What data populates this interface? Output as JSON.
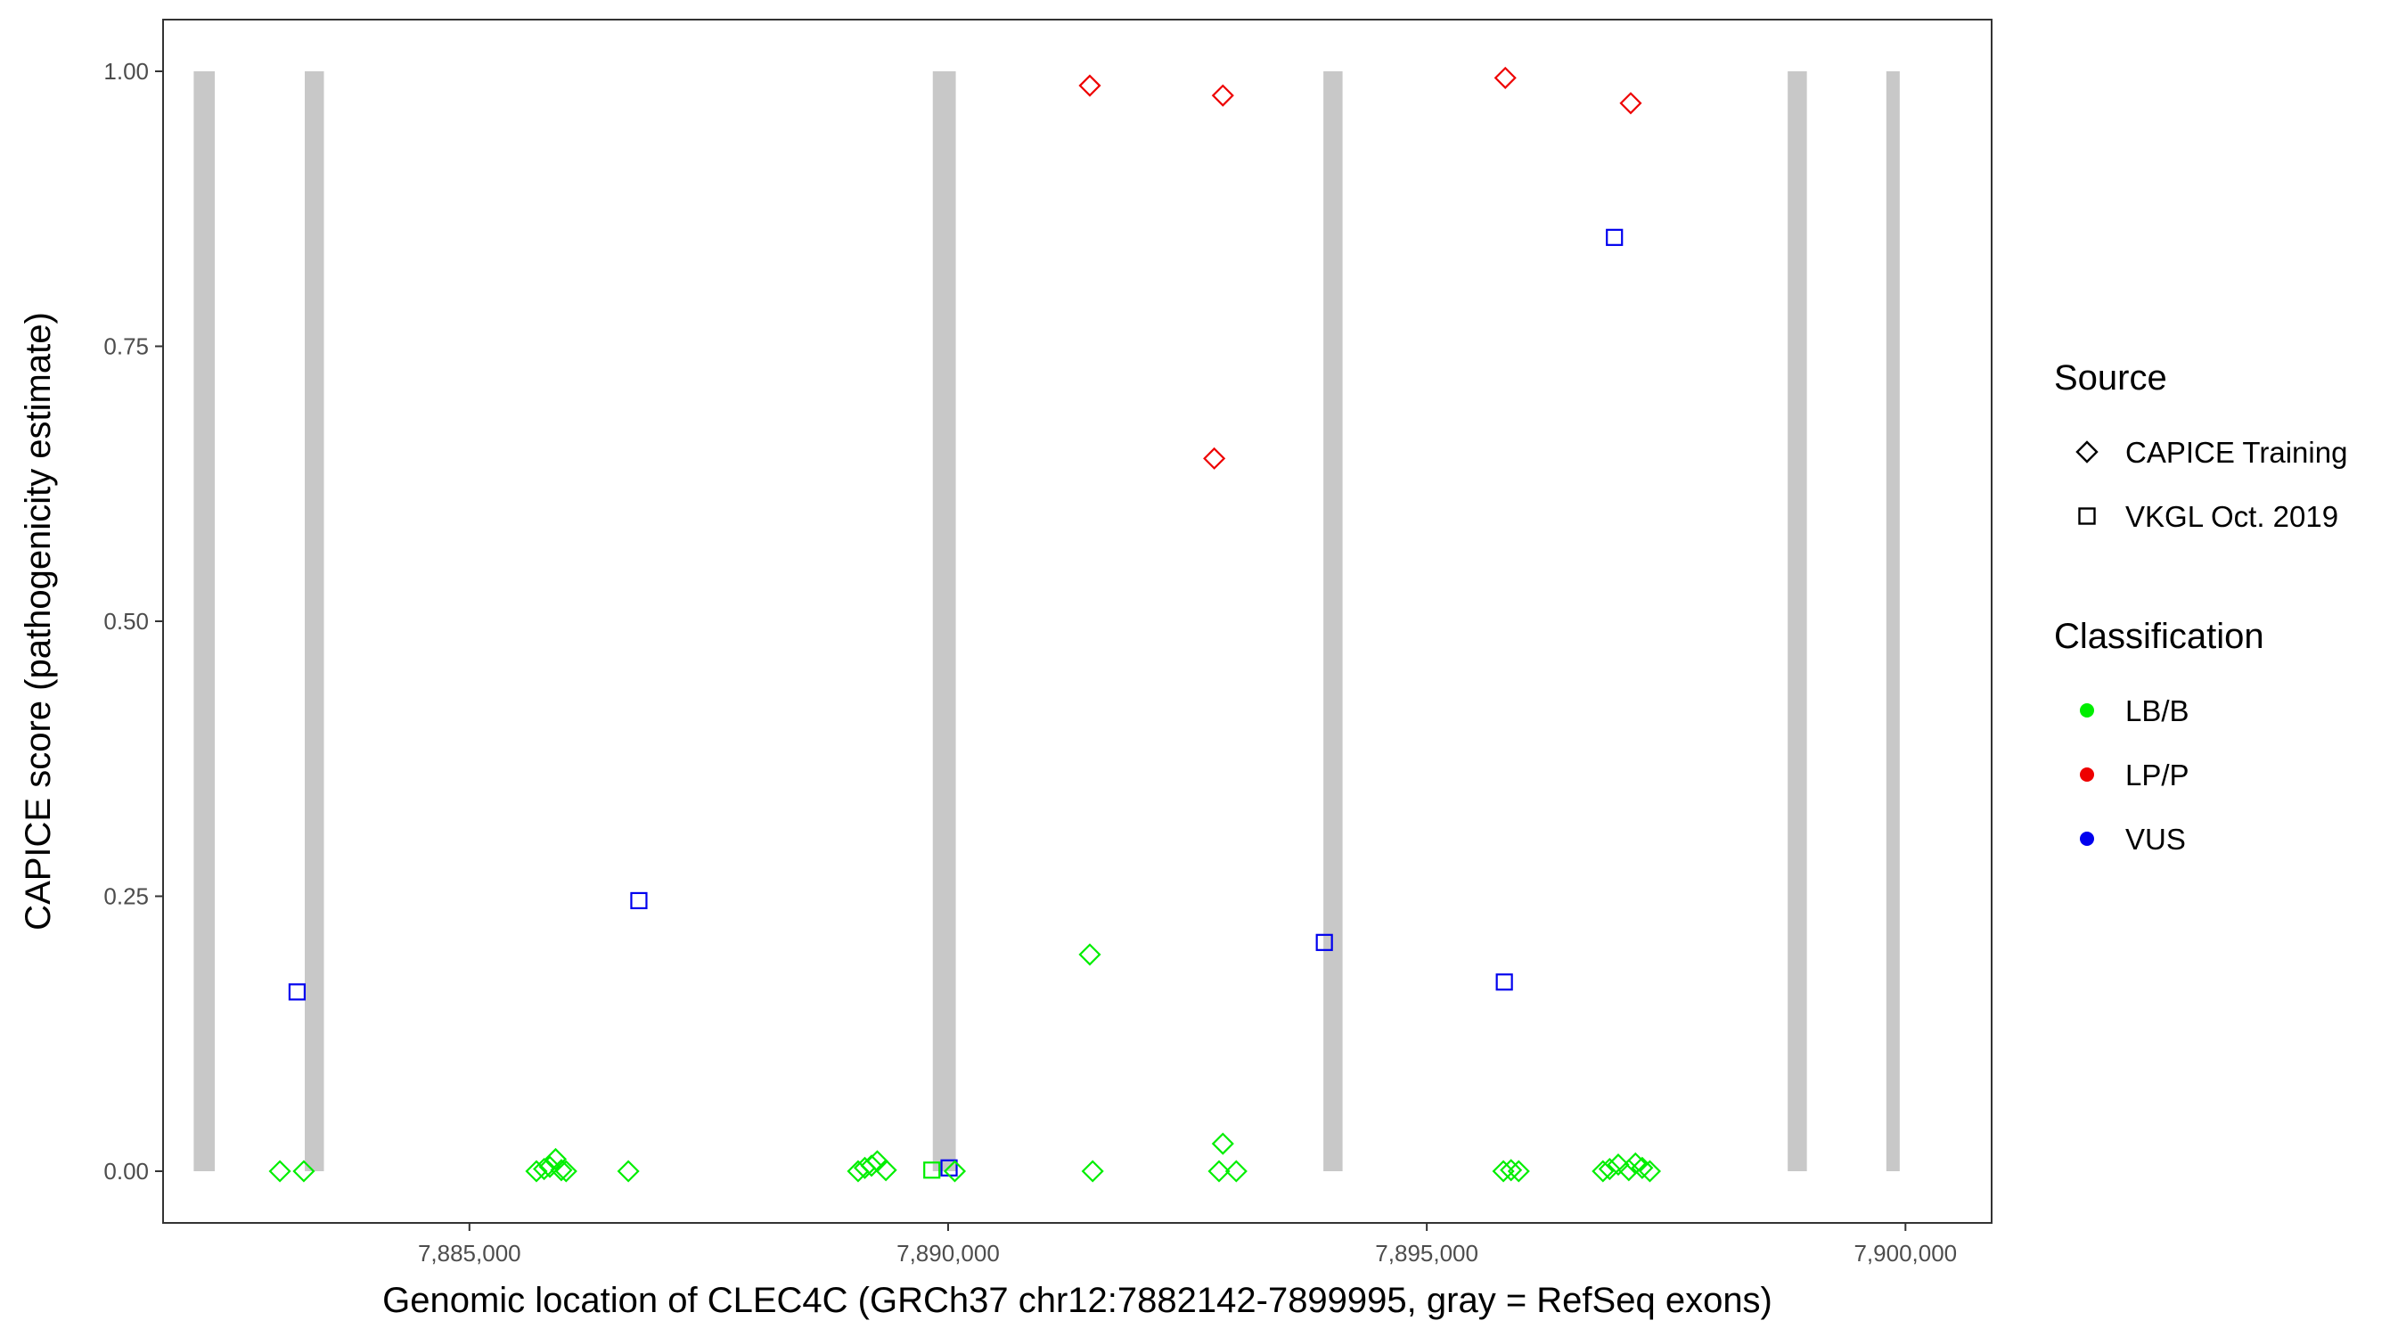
{
  "chart_data": {
    "type": "scatter",
    "title": "",
    "xlabel": "Genomic location of CLEC4C (GRCh37 chr12:7882142-7899995, gray = RefSeq exons)",
    "ylabel": "CAPICE score (pathogenicity estimate)",
    "xlim": [
      7881800,
      7900900
    ],
    "ylim": [
      -0.047,
      1.047
    ],
    "x_ticks": [
      7885000,
      7890000,
      7895000,
      7900000
    ],
    "x_tick_labels": [
      "7,885,000",
      "7,890,000",
      "7,895,000",
      "7,900,000"
    ],
    "y_ticks": [
      0,
      0.25,
      0.5,
      0.75,
      1
    ],
    "y_tick_labels": [
      "0.00",
      "0.25",
      "0.50",
      "0.75",
      "1.00"
    ],
    "grid": false,
    "legend_position": "right",
    "exons": [
      [
        7882120,
        7882340
      ],
      [
        7883280,
        7883480
      ],
      [
        7889840,
        7890080
      ],
      [
        7893920,
        7894120
      ],
      [
        7898770,
        7898970
      ],
      [
        7899800,
        7899940
      ]
    ],
    "colors": {
      "LB/B": "#00ee00",
      "LP/P": "#ee0000",
      "VUS": "#0000ee",
      "exon": "#c8c8c8"
    },
    "legends": [
      {
        "title": "Source",
        "entries": [
          {
            "label": "CAPICE Training",
            "shape": "diamond"
          },
          {
            "label": "VKGL Oct. 2019",
            "shape": "square"
          }
        ]
      },
      {
        "title": "Classification",
        "entries": [
          {
            "label": "LB/B",
            "shape": "dot"
          },
          {
            "label": "LP/P",
            "shape": "dot"
          },
          {
            "label": "VUS",
            "shape": "dot"
          }
        ]
      }
    ],
    "points": [
      {
        "x": 7891480,
        "y": 0.987,
        "source": "CAPICE Training",
        "class": "LP/P"
      },
      {
        "x": 7892870,
        "y": 0.978,
        "source": "CAPICE Training",
        "class": "LP/P"
      },
      {
        "x": 7895820,
        "y": 0.994,
        "source": "CAPICE Training",
        "class": "LP/P"
      },
      {
        "x": 7897130,
        "y": 0.971,
        "source": "CAPICE Training",
        "class": "LP/P"
      },
      {
        "x": 7892780,
        "y": 0.648,
        "source": "CAPICE Training",
        "class": "LP/P"
      },
      {
        "x": 7896960,
        "y": 0.849,
        "source": "VKGL Oct. 2019",
        "class": "VUS"
      },
      {
        "x": 7886770,
        "y": 0.246,
        "source": "VKGL Oct. 2019",
        "class": "VUS"
      },
      {
        "x": 7883200,
        "y": 0.163,
        "source": "VKGL Oct. 2019",
        "class": "VUS"
      },
      {
        "x": 7893930,
        "y": 0.208,
        "source": "VKGL Oct. 2019",
        "class": "VUS"
      },
      {
        "x": 7895810,
        "y": 0.172,
        "source": "VKGL Oct. 2019",
        "class": "VUS"
      },
      {
        "x": 7890010,
        "y": 0.003,
        "source": "VKGL Oct. 2019",
        "class": "VUS"
      },
      {
        "x": 7891480,
        "y": 0.197,
        "source": "CAPICE Training",
        "class": "LB/B"
      },
      {
        "x": 7892870,
        "y": 0.025,
        "source": "CAPICE Training",
        "class": "LB/B"
      },
      {
        "x": 7889830,
        "y": 0.001,
        "source": "VKGL Oct. 2019",
        "class": "LB/B"
      },
      {
        "x": 7883020,
        "y": 0,
        "source": "CAPICE Training",
        "class": "LB/B"
      },
      {
        "x": 7883270,
        "y": 0,
        "source": "CAPICE Training",
        "class": "LB/B"
      },
      {
        "x": 7885700,
        "y": 0,
        "source": "CAPICE Training",
        "class": "LB/B"
      },
      {
        "x": 7885780,
        "y": 0.002,
        "source": "CAPICE Training",
        "class": "LB/B"
      },
      {
        "x": 7885840,
        "y": 0.004,
        "source": "CAPICE Training",
        "class": "LB/B"
      },
      {
        "x": 7885900,
        "y": 0.011,
        "source": "CAPICE Training",
        "class": "LB/B"
      },
      {
        "x": 7885960,
        "y": 0.001,
        "source": "CAPICE Training",
        "class": "LB/B"
      },
      {
        "x": 7886010,
        "y": 0,
        "source": "CAPICE Training",
        "class": "LB/B"
      },
      {
        "x": 7886660,
        "y": 0,
        "source": "CAPICE Training",
        "class": "LB/B"
      },
      {
        "x": 7889060,
        "y": 0,
        "source": "CAPICE Training",
        "class": "LB/B"
      },
      {
        "x": 7889130,
        "y": 0.003,
        "source": "CAPICE Training",
        "class": "LB/B"
      },
      {
        "x": 7889200,
        "y": 0.005,
        "source": "CAPICE Training",
        "class": "LB/B"
      },
      {
        "x": 7889260,
        "y": 0.009,
        "source": "CAPICE Training",
        "class": "LB/B"
      },
      {
        "x": 7889350,
        "y": 0.001,
        "source": "CAPICE Training",
        "class": "LB/B"
      },
      {
        "x": 7890070,
        "y": 0,
        "source": "CAPICE Training",
        "class": "LB/B"
      },
      {
        "x": 7891510,
        "y": 0,
        "source": "CAPICE Training",
        "class": "LB/B"
      },
      {
        "x": 7892830,
        "y": 0,
        "source": "CAPICE Training",
        "class": "LB/B"
      },
      {
        "x": 7893010,
        "y": 0,
        "source": "CAPICE Training",
        "class": "LB/B"
      },
      {
        "x": 7895800,
        "y": 0,
        "source": "CAPICE Training",
        "class": "LB/B"
      },
      {
        "x": 7895880,
        "y": 0.001,
        "source": "CAPICE Training",
        "class": "LB/B"
      },
      {
        "x": 7895960,
        "y": 0,
        "source": "CAPICE Training",
        "class": "LB/B"
      },
      {
        "x": 7896840,
        "y": 0,
        "source": "CAPICE Training",
        "class": "LB/B"
      },
      {
        "x": 7896910,
        "y": 0.002,
        "source": "CAPICE Training",
        "class": "LB/B"
      },
      {
        "x": 7897000,
        "y": 0.006,
        "source": "CAPICE Training",
        "class": "LB/B"
      },
      {
        "x": 7897110,
        "y": 0.001,
        "source": "CAPICE Training",
        "class": "LB/B"
      },
      {
        "x": 7897180,
        "y": 0.007,
        "source": "CAPICE Training",
        "class": "LB/B"
      },
      {
        "x": 7897250,
        "y": 0.003,
        "source": "CAPICE Training",
        "class": "LB/B"
      },
      {
        "x": 7897330,
        "y": 0,
        "source": "CAPICE Training",
        "class": "LB/B"
      }
    ]
  }
}
